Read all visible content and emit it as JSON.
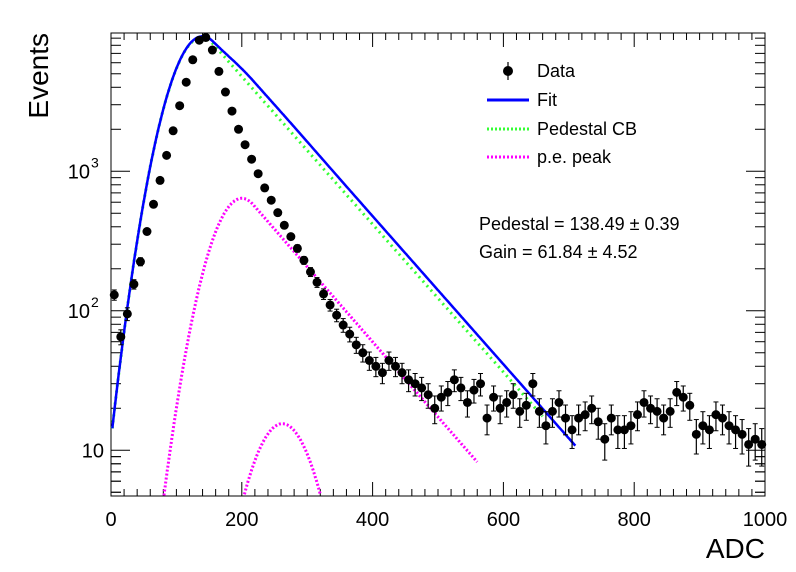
{
  "chart_data": {
    "type": "scatter",
    "xlabel": "ADC",
    "ylabel": "Events",
    "xlim": [
      0,
      1000
    ],
    "ylim": [
      4.7,
      9800
    ],
    "yscale": "log",
    "grid": false,
    "legend_position": "top-right",
    "x_ticks": [
      "0",
      "200",
      "400",
      "600",
      "800",
      "1000"
    ],
    "y_ticks": [
      {
        "value": 10,
        "label": "10"
      },
      {
        "value": 100,
        "label": "10",
        "sup": "2"
      },
      {
        "value": 1000,
        "label": "10",
        "sup": "3"
      }
    ],
    "legend": [
      {
        "label": "Data",
        "style": "marker",
        "color": "#000000"
      },
      {
        "label": "Fit",
        "style": "solid",
        "color": "#0000ff"
      },
      {
        "label": "Pedestal CB",
        "style": "dotted",
        "color": "#33ff33"
      },
      {
        "label": "p.e. peak",
        "style": "dotted",
        "color": "#ff00ff"
      }
    ],
    "annotations": [
      "Pedestal = 138.49 ± 0.39",
      "Gain = 61.84 ± 4.52"
    ],
    "data": {
      "x": [
        5,
        15,
        25,
        35,
        45,
        55,
        65,
        75,
        85,
        95,
        105,
        115,
        125,
        135,
        145,
        155,
        165,
        175,
        185,
        195,
        205,
        215,
        225,
        235,
        245,
        255,
        265,
        275,
        285,
        295,
        305,
        315,
        325,
        335,
        345,
        355,
        365,
        375,
        385,
        395,
        405,
        415,
        425,
        435,
        445,
        455,
        465,
        475,
        485,
        495,
        505,
        515,
        525,
        535,
        545,
        555,
        565,
        575,
        585,
        595,
        605,
        615,
        625,
        635,
        645,
        655,
        665,
        675,
        685,
        695,
        705,
        715,
        725,
        735,
        745,
        755,
        765,
        775,
        785,
        795,
        805,
        815,
        825,
        835,
        845,
        855,
        865,
        875,
        885,
        895,
        905,
        915,
        925,
        935,
        945,
        955,
        965,
        975,
        985,
        995
      ],
      "y": [
        130,
        65,
        95,
        155,
        225,
        370,
        580,
        860,
        1300,
        1950,
        2950,
        4350,
        6300,
        8700,
        9100,
        7400,
        5200,
        3700,
        2700,
        2000,
        1550,
        1220,
        960,
        760,
        620,
        505,
        410,
        340,
        280,
        230,
        190,
        160,
        132,
        110,
        93,
        79,
        68,
        57,
        50,
        44,
        40,
        36,
        44,
        40,
        36,
        32,
        30,
        28,
        25,
        20,
        24,
        26,
        32,
        28,
        22,
        27,
        30,
        17,
        24,
        20,
        22,
        25,
        19,
        21,
        30,
        19,
        15,
        19,
        22,
        17,
        14,
        17,
        18,
        20,
        16,
        12,
        17,
        14,
        14,
        15,
        18,
        22,
        20,
        19,
        17,
        19,
        26,
        24,
        21,
        13,
        15,
        14,
        18,
        17,
        15,
        14,
        13,
        11,
        12,
        11
      ],
      "yerr": [
        11,
        8,
        10,
        12,
        15,
        19,
        24,
        29,
        36,
        44,
        54,
        66,
        79,
        93,
        95,
        86,
        72,
        61,
        52,
        45,
        39,
        35,
        31,
        28,
        25,
        22,
        20,
        18,
        17,
        15,
        14,
        13,
        11.5,
        10.5,
        9.6,
        8.9,
        8.2,
        7.5,
        7.1,
        6.6,
        6.3,
        6,
        6.6,
        6.3,
        6,
        5.7,
        5.5,
        5.3,
        5,
        4.5,
        4.9,
        5.1,
        5.7,
        5.3,
        4.7,
        5.2,
        5.5,
        4.1,
        4.9,
        4.5,
        4.7,
        5,
        4.4,
        4.6,
        5.5,
        4.4,
        3.9,
        4.4,
        4.7,
        4.1,
        3.7,
        4.1,
        4.2,
        4.5,
        4,
        3.5,
        4.1,
        3.7,
        3.7,
        3.9,
        4.2,
        4.7,
        4.5,
        4.4,
        4.1,
        4.4,
        5.1,
        4.9,
        4.6,
        3.6,
        3.9,
        3.7,
        4.2,
        4.1,
        3.9,
        3.7,
        3.6,
        3.3,
        3.5,
        3.3
      ]
    },
    "model": {
      "pedestal_mean": 138.49,
      "gain": 61.84,
      "pedestal_amp": 9100,
      "pedestal_sigma": 38,
      "pedestal_tail_slope": 0.0122,
      "pedestal_x_min": 2,
      "pedestal_x_max": 660,
      "pe1_center": 200,
      "pe1_amp": 640,
      "pe1_sigma": 38,
      "pe1_tail_slope": 0.0124,
      "pe1_x_min": 20,
      "pe1_x_max": 560,
      "pe2_center": 262,
      "pe2_amp": 15.5,
      "pe2_sigma": 38,
      "pe2_x_min": 170,
      "pe2_x_max": 355,
      "fit_x_min": 2,
      "fit_x_max": 710
    }
  }
}
